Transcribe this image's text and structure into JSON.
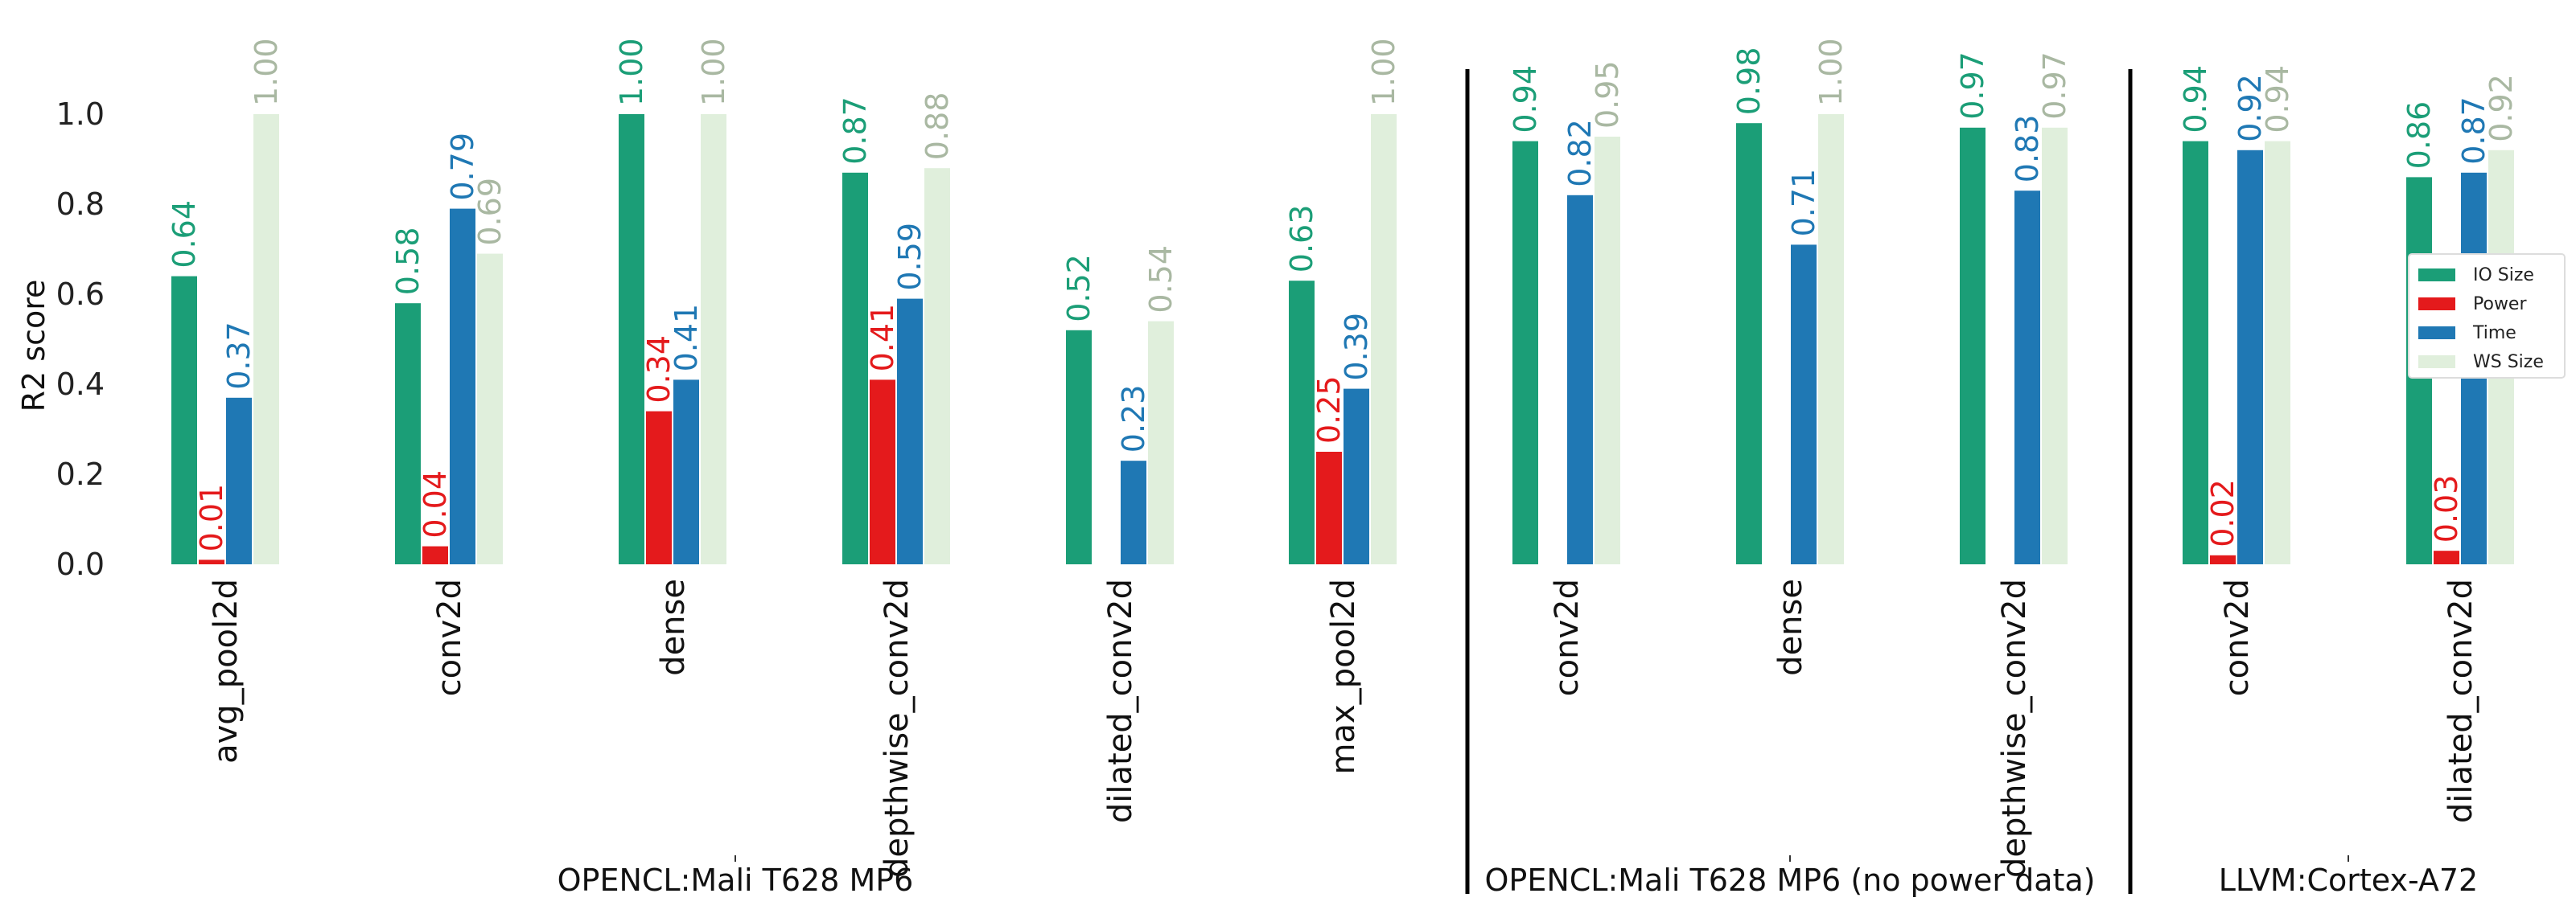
{
  "chart_data": {
    "type": "bar",
    "ylabel": "R2 score",
    "ylim": [
      0,
      1.1
    ],
    "yticks": [
      "0.0",
      "0.2",
      "0.4",
      "0.6",
      "0.8",
      "1.0"
    ],
    "series": [
      {
        "name": "IO Size",
        "color": "#1b9e77"
      },
      {
        "name": "Power",
        "color": "#e41a1c"
      },
      {
        "name": "Time",
        "color": "#1f78b4"
      },
      {
        "name": "WS Size",
        "color": "#e0efdc",
        "label_color": "#a9b8a2"
      }
    ],
    "groups": [
      {
        "label": "OPENCL:Mali T628 MP6",
        "categories": [
          {
            "name": "avg_pool2d",
            "values": [
              0.64,
              0.01,
              0.37,
              1.0
            ],
            "labels": [
              "0.64",
              "0.01",
              "0.37",
              "1.00"
            ]
          },
          {
            "name": "conv2d",
            "values": [
              0.58,
              0.04,
              0.79,
              0.69
            ],
            "labels": [
              "0.58",
              "0.04",
              "0.79",
              "0.69"
            ]
          },
          {
            "name": "dense",
            "values": [
              1.0,
              0.34,
              0.41,
              1.0
            ],
            "labels": [
              "1.00",
              "0.34",
              "0.41",
              "1.00"
            ]
          },
          {
            "name": "depthwise_conv2d",
            "values": [
              0.87,
              0.41,
              0.59,
              0.88
            ],
            "labels": [
              "0.87",
              "0.41",
              "0.59",
              "0.88"
            ]
          },
          {
            "name": "dilated_conv2d",
            "values": [
              0.52,
              null,
              0.23,
              0.54
            ],
            "labels": [
              "0.52",
              null,
              "0.23",
              "0.54"
            ]
          },
          {
            "name": "max_pool2d",
            "values": [
              0.63,
              0.25,
              0.39,
              1.0
            ],
            "labels": [
              "0.63",
              "0.25",
              "0.39",
              "1.00"
            ]
          }
        ]
      },
      {
        "label": "OPENCL:Mali T628 MP6 (no power data)",
        "categories": [
          {
            "name": "conv2d",
            "values": [
              0.94,
              null,
              0.82,
              0.95
            ],
            "labels": [
              "0.94",
              null,
              "0.82",
              "0.95"
            ]
          },
          {
            "name": "dense",
            "values": [
              0.98,
              null,
              0.71,
              1.0
            ],
            "labels": [
              "0.98",
              null,
              "0.71",
              "1.00"
            ]
          },
          {
            "name": "depthwise_conv2d",
            "values": [
              0.97,
              null,
              0.83,
              0.97
            ],
            "labels": [
              "0.97",
              null,
              "0.83",
              "0.97"
            ]
          }
        ]
      },
      {
        "label": "LLVM:Cortex-A72",
        "categories": [
          {
            "name": "conv2d",
            "values": [
              0.94,
              0.02,
              0.92,
              0.94
            ],
            "labels": [
              "0.94",
              "0.02",
              "0.92",
              "0.94"
            ]
          },
          {
            "name": "dilated_conv2d",
            "values": [
              0.86,
              0.03,
              0.87,
              0.92
            ],
            "labels": [
              "0.86",
              "0.03",
              "0.87",
              "0.92"
            ]
          }
        ]
      }
    ],
    "legend_position": "right"
  }
}
